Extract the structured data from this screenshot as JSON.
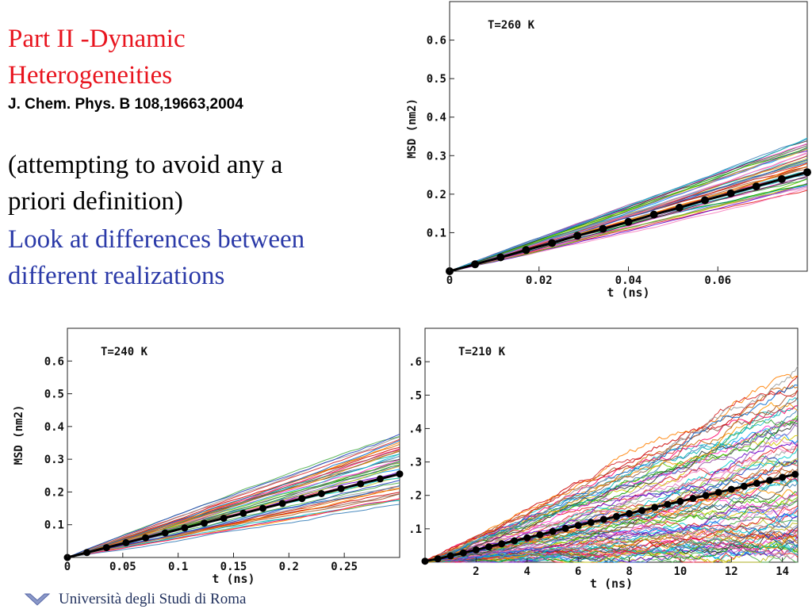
{
  "slide": {
    "title": [
      "Part II -Dynamic",
      "Heterogeneities"
    ],
    "citation": "J. Chem. Phys. B 108,19663,2004",
    "body_black": [
      "(attempting to avoid any a",
      "priori definition)"
    ],
    "body_blue": [
      "Look at differences between",
      "different realizations"
    ],
    "footer": "Università degli Studi di Roma",
    "colors": {
      "title": "#e8141e",
      "body": "#000000",
      "accent": "#2b3aa8",
      "footer": "#1f2f5c"
    }
  },
  "chart_data": [
    {
      "type": "line",
      "annotation": "T=260 K",
      "xlabel": "t (ns)",
      "ylabel": "MSD (nm2)",
      "xlim": [
        0,
        0.08
      ],
      "ylim": [
        0,
        0.7
      ],
      "xticks": [
        0,
        0.02,
        0.04,
        0.06
      ],
      "xtick_labels": [
        "0",
        "0.02",
        "0.04",
        "0.06"
      ],
      "yticks": [
        0.1,
        0.2,
        0.3,
        0.4,
        0.5,
        0.6
      ],
      "ytick_labels": [
        "0.1",
        "0.2",
        "0.3",
        "0.4",
        "0.5",
        "0.6"
      ],
      "grid": false,
      "realizations": {
        "count": 45,
        "final_min": 0.21,
        "final_max": 0.345
      },
      "series": [
        {
          "x": [
            0,
            0.0057,
            0.0114,
            0.0171,
            0.0229,
            0.0286,
            0.0343,
            0.04,
            0.0457,
            0.0514,
            0.0571,
            0.0629,
            0.0686,
            0.0743,
            0.08
          ],
          "values": [
            0,
            0.018,
            0.036,
            0.055,
            0.073,
            0.092,
            0.11,
            0.128,
            0.147,
            0.165,
            0.184,
            0.202,
            0.22,
            0.239,
            0.257
          ]
        }
      ]
    },
    {
      "type": "line",
      "annotation": "T=240 K",
      "xlabel": "t (ns)",
      "ylabel": "MSD (nm2)",
      "xlim": [
        0,
        0.3
      ],
      "ylim": [
        0,
        0.7
      ],
      "xticks": [
        0,
        0.05,
        0.1,
        0.15,
        0.2,
        0.25
      ],
      "xtick_labels": [
        "0",
        "0.05",
        "0.1",
        "0.15",
        "0.2",
        "0.25"
      ],
      "yticks": [
        0.1,
        0.2,
        0.3,
        0.4,
        0.5,
        0.6
      ],
      "ytick_labels": [
        "0.1",
        "0.2",
        "0.3",
        "0.4",
        "0.5",
        "0.6"
      ],
      "grid": false,
      "realizations": {
        "count": 45,
        "final_min": 0.17,
        "final_max": 0.375
      },
      "series": [
        {
          "x": [
            0,
            0.0176,
            0.0353,
            0.0529,
            0.0706,
            0.0882,
            0.1059,
            0.1235,
            0.1412,
            0.1588,
            0.1765,
            0.1941,
            0.2118,
            0.2294,
            0.2471,
            0.2647,
            0.2824,
            0.3
          ],
          "values": [
            0,
            0.015,
            0.03,
            0.045,
            0.06,
            0.075,
            0.09,
            0.105,
            0.12,
            0.135,
            0.15,
            0.165,
            0.18,
            0.195,
            0.21,
            0.225,
            0.24,
            0.255
          ]
        }
      ]
    },
    {
      "type": "line",
      "annotation": "T=210 K",
      "xlabel": "t (ns)",
      "ylabel": "",
      "xlim": [
        0,
        14.6
      ],
      "ylim": [
        0,
        0.7
      ],
      "xticks": [
        2,
        4,
        6,
        8,
        10,
        12,
        14
      ],
      "xtick_labels": [
        "2",
        "4",
        "6",
        "8",
        "10",
        "12",
        "14"
      ],
      "yticks": [
        0.1,
        0.2,
        0.3,
        0.4,
        0.5,
        0.6
      ],
      "ytick_labels": [
        ".1",
        ".2",
        ".3",
        ".4",
        ".5",
        ".6"
      ],
      "grid": false,
      "realizations": {
        "count": 90,
        "final_min": 0.03,
        "final_max": 0.565
      },
      "series": [
        {
          "x": [
            0,
            0.5,
            1.0,
            1.5,
            2.0,
            2.5,
            3.0,
            3.5,
            4.0,
            4.5,
            5.0,
            5.5,
            6.0,
            6.5,
            7.0,
            7.5,
            8.0,
            8.5,
            9.0,
            9.5,
            10.0,
            10.5,
            11.0,
            11.5,
            12.0,
            12.5,
            13.0,
            13.5,
            14.0,
            14.5
          ],
          "values": [
            0.003,
            0.01,
            0.019,
            0.028,
            0.037,
            0.046,
            0.055,
            0.064,
            0.073,
            0.082,
            0.092,
            0.101,
            0.11,
            0.119,
            0.128,
            0.137,
            0.146,
            0.155,
            0.164,
            0.173,
            0.182,
            0.191,
            0.2,
            0.209,
            0.218,
            0.227,
            0.236,
            0.245,
            0.254,
            0.263
          ]
        }
      ]
    }
  ]
}
